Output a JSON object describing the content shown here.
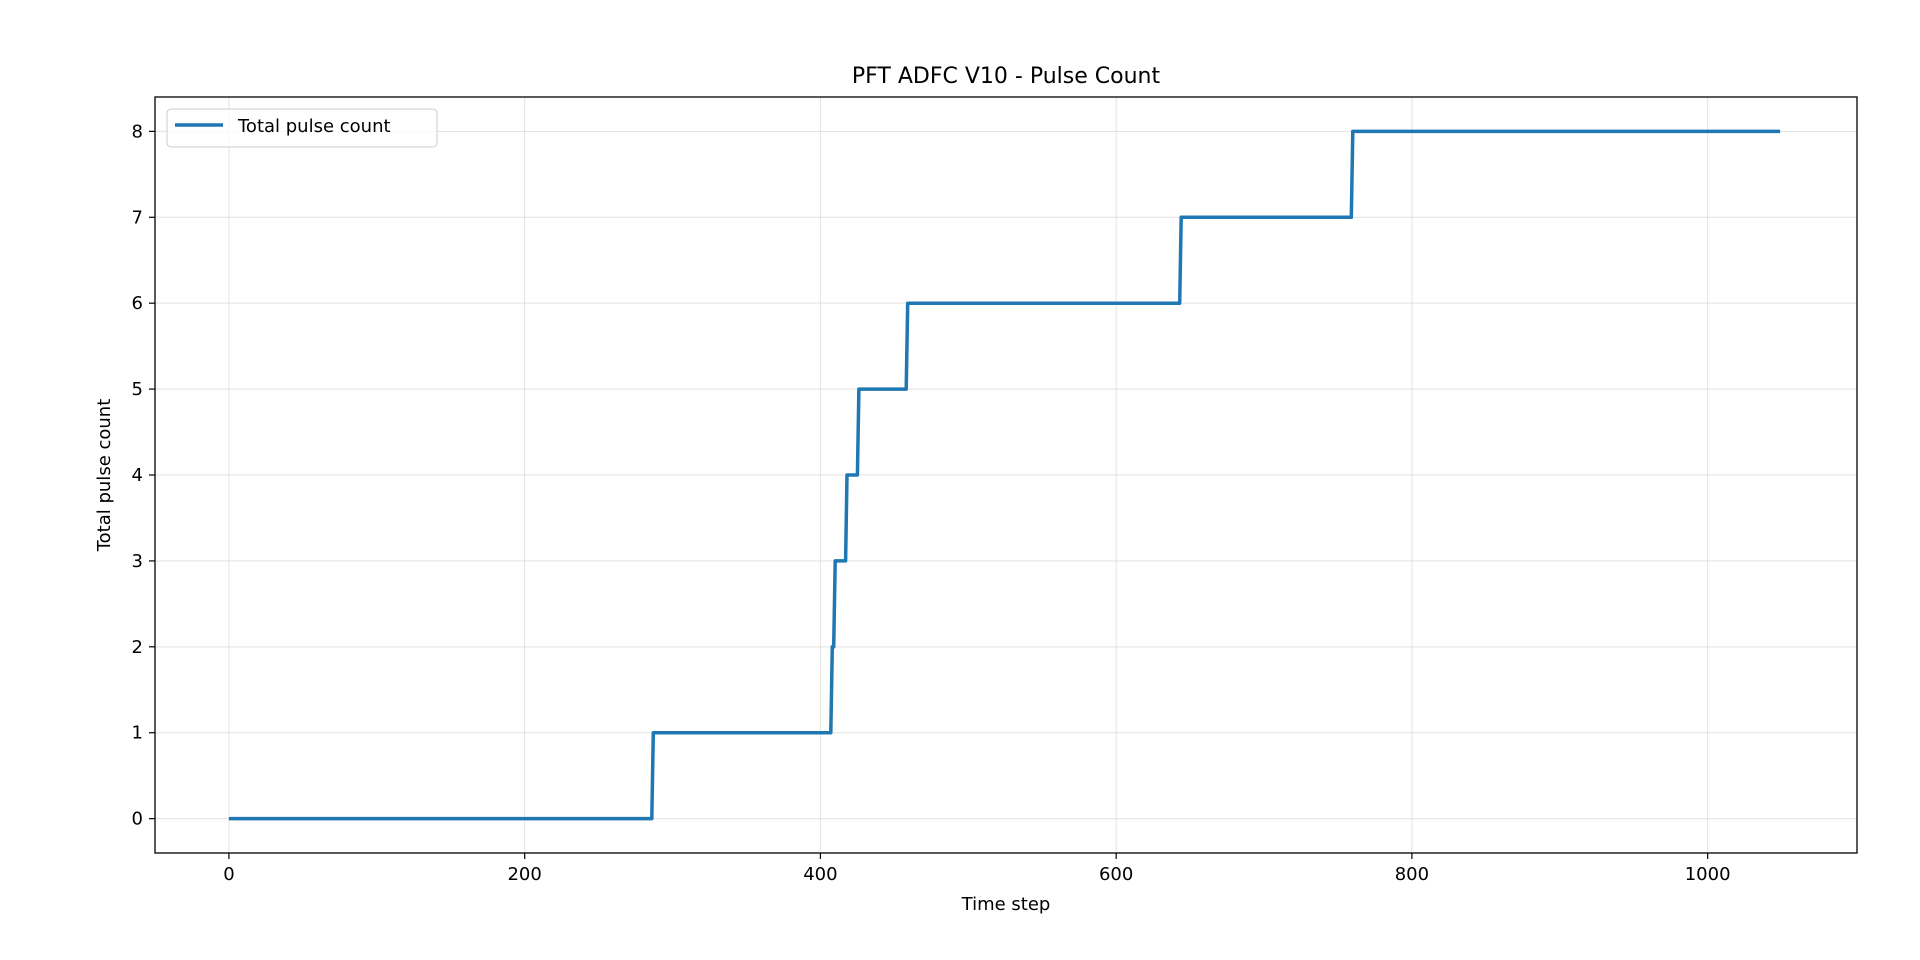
{
  "chart_data": {
    "type": "line",
    "title": "PFT ADFC V10 - Pulse Count",
    "xlabel": "Time step",
    "ylabel": "Total pulse count",
    "xlim": [
      -50,
      1101
    ],
    "ylim": [
      -0.4,
      8.4
    ],
    "x_ticks": [
      0,
      200,
      400,
      600,
      800,
      1000
    ],
    "y_ticks": [
      0,
      1,
      2,
      3,
      4,
      5,
      6,
      7,
      8
    ],
    "grid": true,
    "legend_position": "upper-left",
    "series": [
      {
        "name": "Total pulse count",
        "color": "#1f77b4",
        "step_points": [
          {
            "x": 0,
            "y": 0
          },
          {
            "x": 286,
            "y": 0
          },
          {
            "x": 287,
            "y": 1
          },
          {
            "x": 407,
            "y": 1
          },
          {
            "x": 408,
            "y": 2
          },
          {
            "x": 409,
            "y": 2
          },
          {
            "x": 410,
            "y": 3
          },
          {
            "x": 417,
            "y": 3
          },
          {
            "x": 418,
            "y": 4
          },
          {
            "x": 425,
            "y": 4
          },
          {
            "x": 426,
            "y": 5
          },
          {
            "x": 458,
            "y": 5
          },
          {
            "x": 459,
            "y": 6
          },
          {
            "x": 643,
            "y": 6
          },
          {
            "x": 644,
            "y": 7
          },
          {
            "x": 759,
            "y": 7
          },
          {
            "x": 760,
            "y": 8
          },
          {
            "x": 1049,
            "y": 8
          }
        ]
      }
    ]
  }
}
